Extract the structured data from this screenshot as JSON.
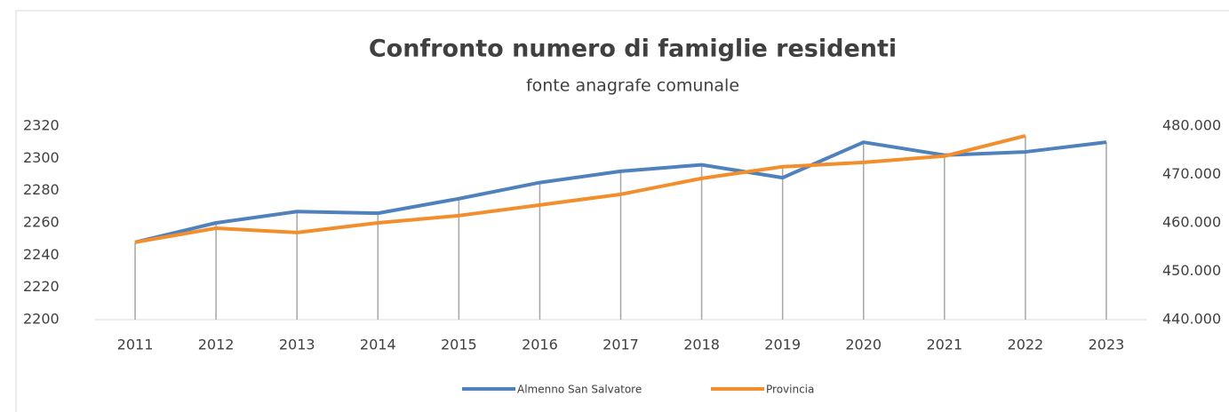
{
  "chart_data": {
    "type": "line",
    "title": "Confronto numero di famiglie residenti",
    "subtitle": "fonte anagrafe comunale",
    "categories": [
      "2011",
      "2012",
      "2013",
      "2014",
      "2015",
      "2016",
      "2017",
      "2018",
      "2019",
      "2020",
      "2021",
      "2022",
      "2023"
    ],
    "series": [
      {
        "name": "Almenno San Salvatore",
        "color": "#4f81bd",
        "values": [
          2248,
          2260,
          2267,
          2266,
          2275,
          2285,
          2292,
          2296,
          2288,
          2310,
          2302,
          2304,
          2310
        ]
      },
      {
        "name": "Provincia",
        "color": "#f28e2b",
        "axis": "y2",
        "values": [
          456000,
          458900,
          458000,
          460000,
          461500,
          463700,
          465900,
          469200,
          471600,
          472500,
          473800,
          478000,
          null
        ]
      }
    ],
    "ylim": [
      2200,
      2320
    ],
    "yticks": [
      2200,
      2220,
      2240,
      2260,
      2280,
      2300,
      2320
    ],
    "y2lim": [
      440000,
      480000
    ],
    "y2ticks": [
      {
        "value": 440000,
        "label": "440.000"
      },
      {
        "value": 450000,
        "label": "450.000"
      },
      {
        "value": 460000,
        "label": "460.000"
      },
      {
        "value": 470000,
        "label": "470.000"
      },
      {
        "value": 480000,
        "label": "480.000"
      }
    ],
    "legend": "bottom"
  }
}
